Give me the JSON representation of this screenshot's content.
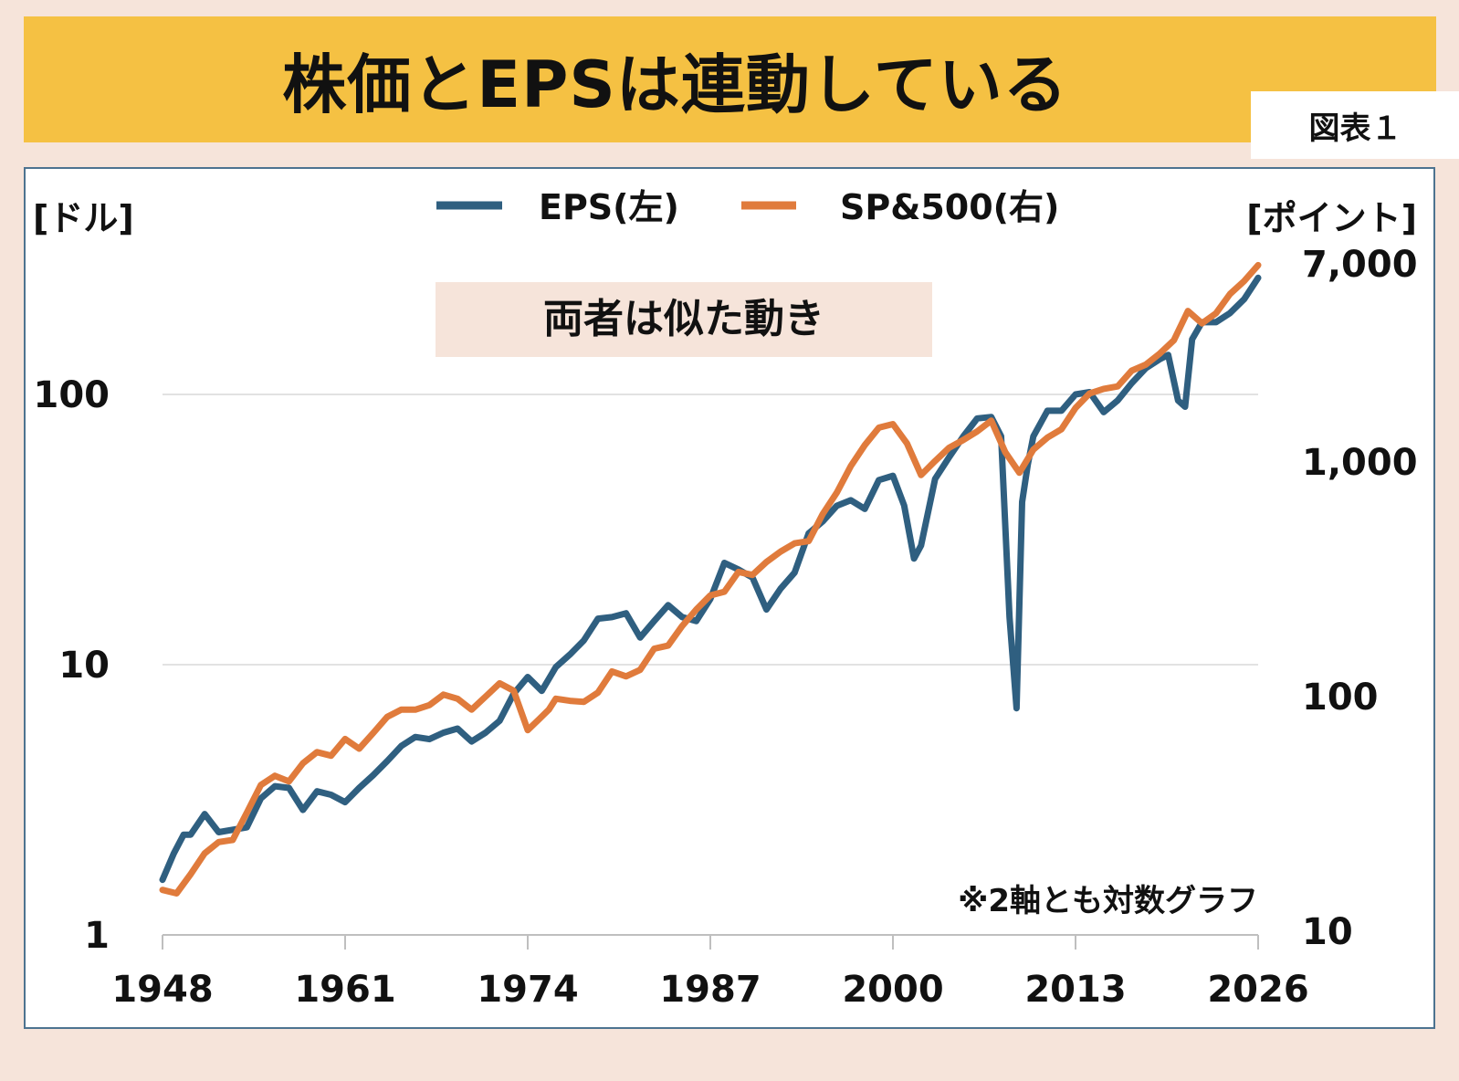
{
  "header": {
    "title": "株価とEPSは連動している",
    "badge": "図表１"
  },
  "colors": {
    "eps": "#2f5f80",
    "sp500": "#e07b3c",
    "banner": "#f5c143",
    "background": "#f6e4da",
    "callout": "#f6e4da"
  },
  "chart_data": {
    "type": "line",
    "y_scale": "log",
    "xlim": [
      1948,
      2026
    ],
    "x_ticks": [
      "1948",
      "1961",
      "1974",
      "1987",
      "2000",
      "2013",
      "2026"
    ],
    "left_axis": {
      "unit": "[ドル]",
      "ylim": [
        1,
        300
      ],
      "ticks": [
        {
          "value": 1,
          "label": "1"
        },
        {
          "value": 10,
          "label": "10"
        },
        {
          "value": 100,
          "label": "100"
        }
      ]
    },
    "right_axis": {
      "unit": "[ポイント]",
      "ylim": [
        10,
        8500
      ],
      "ticks": [
        {
          "value": 10,
          "label": "10"
        },
        {
          "value": 100,
          "label": "100"
        },
        {
          "value": 1000,
          "label": "1,000"
        },
        {
          "value": 7000,
          "label": "7,000"
        }
      ]
    },
    "legend_position": "top-center",
    "annotation": "両者は似た動き",
    "note": "※2軸とも対数グラフ",
    "series": [
      {
        "name": "EPS(左)",
        "axis": "left",
        "color": "#2f5f80",
        "x": [
          1948,
          1948.8,
          1949.5,
          1950,
          1951,
          1952,
          1953,
          1954,
          1955,
          1956,
          1957,
          1958,
          1959,
          1960,
          1961,
          1962,
          1963,
          1964,
          1965,
          1966,
          1967,
          1968,
          1969,
          1970,
          1971,
          1972,
          1973,
          1974,
          1975,
          1976,
          1977,
          1978,
          1979,
          1980,
          1981,
          1982,
          1983,
          1984,
          1985,
          1986,
          1987,
          1988,
          1989,
          1990,
          1991,
          1992,
          1993,
          1994,
          1995,
          1996,
          1997,
          1998,
          1999,
          2000,
          2000.8,
          2001.5,
          2002,
          2003,
          2004,
          2005,
          2006,
          2007,
          2007.7,
          2008.3,
          2008.8,
          2009.2,
          2009.6,
          2010,
          2011,
          2012,
          2013,
          2014,
          2015,
          2016,
          2017,
          2018,
          2019,
          2019.6,
          2020.3,
          2020.8,
          2021.3,
          2022,
          2023,
          2024,
          2025,
          2026
        ],
        "values": [
          1.6,
          2.0,
          2.35,
          2.35,
          2.8,
          2.4,
          2.45,
          2.5,
          3.2,
          3.55,
          3.5,
          2.9,
          3.4,
          3.3,
          3.1,
          3.5,
          3.9,
          4.4,
          5.0,
          5.4,
          5.3,
          5.6,
          5.8,
          5.2,
          5.6,
          6.2,
          7.8,
          9.0,
          8.0,
          9.8,
          10.9,
          12.3,
          14.8,
          15.0,
          15.5,
          12.6,
          14.5,
          16.6,
          15.0,
          14.5,
          17.5,
          23.8,
          22.5,
          21.0,
          16.0,
          19.1,
          21.9,
          30.6,
          33.9,
          38.7,
          40.6,
          37.7,
          48.2,
          50.0,
          38.8,
          24.7,
          27.6,
          48.7,
          58.5,
          69.8,
          81.5,
          82.5,
          70,
          15,
          6.9,
          40,
          55,
          70,
          87,
          87,
          100,
          102,
          86,
          95,
          110,
          125,
          135,
          140,
          95,
          90,
          160,
          185,
          185,
          200,
          225,
          270
        ]
      },
      {
        "name": "SP&500(右)",
        "axis": "right",
        "color": "#e07b3c",
        "x": [
          1948,
          1949,
          1950,
          1951,
          1952,
          1953,
          1954,
          1955,
          1956,
          1957,
          1958,
          1959,
          1960,
          1961,
          1962,
          1963,
          1964,
          1965,
          1966,
          1967,
          1968,
          1969,
          1970,
          1971,
          1972,
          1973,
          1974,
          1974.8,
          1975.5,
          1976,
          1977,
          1978,
          1979,
          1980,
          1981,
          1982,
          1983,
          1984,
          1985,
          1986,
          1987,
          1988,
          1989,
          1990,
          1991,
          1992,
          1993,
          1994,
          1995,
          1996,
          1997,
          1998,
          1999,
          2000,
          2001,
          2002,
          2003,
          2004,
          2005,
          2006,
          2007,
          2008,
          2009,
          2010,
          2011,
          2012,
          2013,
          2014,
          2015,
          2016,
          2017,
          2018,
          2019,
          2020,
          2021,
          2022,
          2023,
          2024,
          2025,
          2026
        ],
        "values": [
          15.0,
          14.5,
          17.5,
          21.5,
          24.0,
          24.5,
          32.0,
          42.0,
          46.0,
          43.5,
          52.0,
          58.0,
          56.0,
          66.0,
          60.0,
          70.0,
          82.0,
          88.0,
          88.0,
          92.0,
          102.0,
          98.0,
          88.0,
          100.0,
          114.0,
          106.0,
          72.0,
          80.0,
          88.0,
          98.0,
          96.0,
          95.0,
          104.0,
          128.0,
          122.0,
          130.0,
          160.0,
          165.0,
          200.0,
          235.0,
          270.0,
          280.0,
          340.0,
          330.0,
          375.0,
          415.0,
          450.0,
          460.0,
          600.0,
          740.0,
          960.0,
          1180.0,
          1400.0,
          1450.0,
          1200.0,
          880.0,
          1010.0,
          1150.0,
          1240.0,
          1350.0,
          1500.0,
          1100.0,
          900.0,
          1130.0,
          1270.0,
          1380.0,
          1700.0,
          1960.0,
          2050.0,
          2100.0,
          2450.0,
          2600.0,
          2900.0,
          3300.0,
          4400.0,
          3900.0,
          4300.0,
          5200.0,
          5900.0,
          6900.0
        ]
      }
    ]
  }
}
